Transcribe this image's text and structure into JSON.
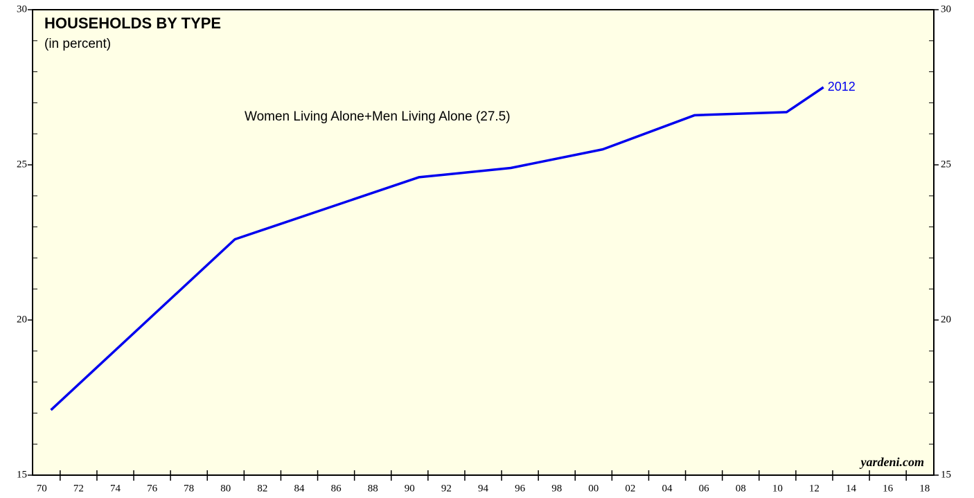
{
  "chart_data": {
    "type": "line",
    "title": "HOUSEHOLDS BY TYPE",
    "subtitle": "(in percent)",
    "x": [
      1970.5,
      1980.5,
      1990.5,
      1995.5,
      2000.5,
      2005.5,
      2010.5,
      2012.5
    ],
    "series": [
      {
        "name": "Women Living Alone+Men Living Alone (27.5)",
        "color": "#0000ee",
        "values": [
          17.1,
          22.6,
          24.6,
          24.9,
          25.5,
          26.6,
          26.7,
          27.5
        ]
      }
    ],
    "end_label": "2012",
    "source": "yardeni.com",
    "xlim": [
      1969.5,
      2018.5
    ],
    "xticks": [
      {
        "value": 1970,
        "label": "70"
      },
      {
        "value": 1972,
        "label": "72"
      },
      {
        "value": 1974,
        "label": "74"
      },
      {
        "value": 1976,
        "label": "76"
      },
      {
        "value": 1978,
        "label": "78"
      },
      {
        "value": 1980,
        "label": "80"
      },
      {
        "value": 1982,
        "label": "82"
      },
      {
        "value": 1984,
        "label": "84"
      },
      {
        "value": 1986,
        "label": "86"
      },
      {
        "value": 1988,
        "label": "88"
      },
      {
        "value": 1990,
        "label": "90"
      },
      {
        "value": 1992,
        "label": "92"
      },
      {
        "value": 1994,
        "label": "94"
      },
      {
        "value": 1996,
        "label": "96"
      },
      {
        "value": 1998,
        "label": "98"
      },
      {
        "value": 2000,
        "label": "00"
      },
      {
        "value": 2002,
        "label": "02"
      },
      {
        "value": 2004,
        "label": "04"
      },
      {
        "value": 2006,
        "label": "06"
      },
      {
        "value": 2008,
        "label": "08"
      },
      {
        "value": 2010,
        "label": "10"
      },
      {
        "value": 2012,
        "label": "12"
      },
      {
        "value": 2014,
        "label": "14"
      },
      {
        "value": 2016,
        "label": "16"
      },
      {
        "value": 2018,
        "label": "18"
      }
    ],
    "ylim": [
      15,
      30
    ],
    "yticks": [
      15,
      20,
      25,
      30
    ],
    "background": "#ffffe6"
  }
}
